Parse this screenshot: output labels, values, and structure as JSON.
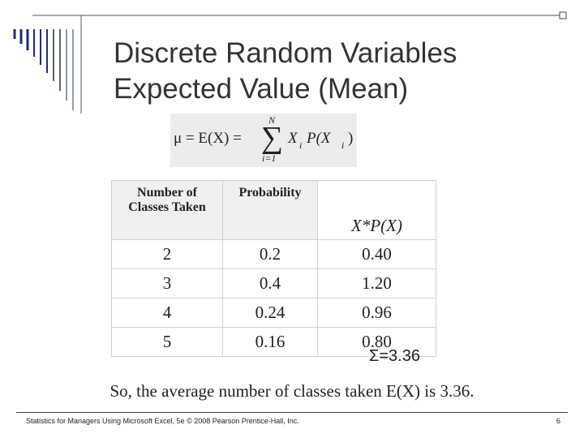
{
  "title": [
    "Discrete Random Variables",
    "Expected Value (Mean)"
  ],
  "formula": {
    "lhs": "μ = E(X) =",
    "sum_top": "N",
    "sum_symbol": "∑",
    "sum_bottom": "i=1",
    "x": "X",
    "x_sub": "i",
    "p_open": "P(X",
    "p_sub": "i",
    "p_close": ")"
  },
  "table": {
    "headers": [
      [
        "Number of",
        "Classes Taken"
      ],
      [
        "Probability"
      ],
      [
        "X*P(X)"
      ]
    ],
    "rows": [
      [
        "2",
        "0.2",
        "0.40"
      ],
      [
        "3",
        "0.4",
        "1.20"
      ],
      [
        "4",
        "0.24",
        "0.96"
      ],
      [
        "5",
        "0.16",
        "0.80"
      ]
    ]
  },
  "sum": "Σ=3.36",
  "conclusion": "So, the average number of classes taken E(X) is 3.36.",
  "footer": {
    "source": "Statistics for Managers Using Microsoft Excel, 5e © 2008 Pearson Prentice-Hall, Inc.",
    "page": "6"
  }
}
